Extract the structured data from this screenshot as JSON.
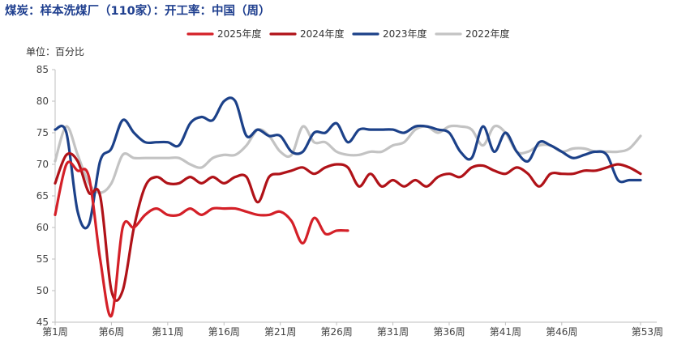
{
  "chart_data": {
    "type": "line",
    "title": "煤炭：样本洗煤厂（110家）：开工率：中国（周）",
    "unit_label": "单位：百分比",
    "ylim": [
      45,
      85
    ],
    "yticks": [
      45,
      50,
      55,
      60,
      65,
      70,
      75,
      80,
      85
    ],
    "xlim": [
      1,
      53
    ],
    "xticks": [
      {
        "x": 1,
        "label": "第1周"
      },
      {
        "x": 6,
        "label": "第6周"
      },
      {
        "x": 11,
        "label": "第11周"
      },
      {
        "x": 16,
        "label": "第16周"
      },
      {
        "x": 21,
        "label": "第21周"
      },
      {
        "x": 26,
        "label": "第26周"
      },
      {
        "x": 31,
        "label": "第31周"
      },
      {
        "x": 36,
        "label": "第36周"
      },
      {
        "x": 41,
        "label": "第41周"
      },
      {
        "x": 46,
        "label": "第46周"
      },
      {
        "x": 53,
        "label": "第53周"
      }
    ],
    "legend_position": "top",
    "series": [
      {
        "name": "2025年度",
        "color": "#d42028",
        "x": [
          1,
          2,
          3,
          4,
          5,
          6,
          7,
          8,
          9,
          10,
          11,
          12,
          13,
          14,
          15,
          16,
          17,
          18,
          19,
          20,
          21,
          22,
          23,
          24,
          25,
          26,
          27
        ],
        "y": [
          62.0,
          70.0,
          69.0,
          68.0,
          55.0,
          46.0,
          60.0,
          60.0,
          62.0,
          63.0,
          62.0,
          62.0,
          63.0,
          62.0,
          63.0,
          63.0,
          63.0,
          62.5,
          62.0,
          62.0,
          62.5,
          61.0,
          57.5,
          61.5,
          59.0,
          59.5,
          59.5
        ]
      },
      {
        "name": "2024年度",
        "color": "#b01218",
        "x": [
          1,
          2,
          3,
          4,
          5,
          6,
          7,
          8,
          9,
          10,
          11,
          12,
          13,
          14,
          15,
          16,
          17,
          18,
          19,
          20,
          21,
          22,
          23,
          24,
          25,
          26,
          27,
          28,
          29,
          30,
          31,
          32,
          33,
          34,
          35,
          36,
          37,
          38,
          39,
          40,
          41,
          42,
          43,
          44,
          45,
          46,
          47,
          48,
          49,
          50,
          51,
          52,
          53
        ],
        "y": [
          67.0,
          71.5,
          70.5,
          65.5,
          65.0,
          50.0,
          50.0,
          60.0,
          66.5,
          68.0,
          67.0,
          67.0,
          68.0,
          67.0,
          68.0,
          67.0,
          68.0,
          68.0,
          64.0,
          68.0,
          68.5,
          69.0,
          69.5,
          68.5,
          69.5,
          70.0,
          69.5,
          66.5,
          68.5,
          66.5,
          67.5,
          66.5,
          67.5,
          66.5,
          68.0,
          68.5,
          68.0,
          69.5,
          69.8,
          69.0,
          68.5,
          69.5,
          68.5,
          66.5,
          68.5,
          68.5,
          68.5,
          69.0,
          69.0,
          69.5,
          70.0,
          69.5,
          68.5
        ]
      },
      {
        "name": "2023年度",
        "color": "#1c4189",
        "x": [
          1,
          2,
          3,
          4,
          5,
          6,
          7,
          8,
          9,
          10,
          11,
          12,
          13,
          14,
          15,
          16,
          17,
          18,
          19,
          20,
          21,
          22,
          23,
          24,
          25,
          26,
          27,
          28,
          29,
          30,
          31,
          32,
          33,
          34,
          35,
          36,
          37,
          38,
          39,
          40,
          41,
          42,
          43,
          44,
          45,
          46,
          47,
          48,
          49,
          50,
          51,
          52,
          53
        ],
        "y": [
          75.5,
          75.0,
          62.5,
          60.5,
          70.5,
          72.5,
          77.0,
          75.0,
          73.5,
          73.5,
          73.5,
          73.0,
          76.5,
          77.5,
          77.0,
          80.0,
          80.0,
          74.5,
          75.5,
          74.5,
          74.5,
          72.0,
          72.0,
          75.0,
          75.0,
          76.5,
          73.5,
          75.5,
          75.5,
          75.5,
          75.5,
          75.0,
          76.0,
          76.0,
          75.5,
          75.0,
          72.0,
          71.0,
          76.0,
          72.0,
          75.0,
          72.0,
          70.5,
          73.5,
          73.0,
          72.0,
          71.0,
          71.5,
          72.0,
          71.5,
          67.5,
          67.5,
          67.5
        ]
      },
      {
        "name": "2022年度",
        "color": "#c3c3c3",
        "x": [
          1,
          2,
          3,
          4,
          5,
          6,
          7,
          8,
          9,
          10,
          11,
          12,
          13,
          14,
          15,
          16,
          17,
          18,
          19,
          20,
          21,
          22,
          23,
          24,
          25,
          26,
          27,
          28,
          29,
          30,
          31,
          32,
          33,
          34,
          35,
          36,
          37,
          38,
          39,
          40,
          41,
          42,
          43,
          44,
          45,
          46,
          47,
          48,
          49,
          50,
          51,
          52,
          53
        ],
        "y": [
          70.5,
          76.0,
          71.5,
          67.0,
          65.5,
          67.0,
          71.5,
          71.0,
          71.0,
          71.0,
          71.0,
          71.0,
          70.0,
          69.5,
          71.0,
          71.5,
          71.5,
          73.0,
          75.5,
          74.5,
          72.0,
          71.5,
          76.0,
          73.5,
          73.5,
          72.0,
          71.5,
          71.5,
          72.0,
          72.0,
          73.0,
          73.5,
          75.5,
          76.0,
          75.0,
          76.0,
          76.0,
          75.5,
          73.0,
          76.0,
          75.0,
          72.0,
          72.0,
          73.0,
          73.0,
          72.0,
          72.5,
          72.5,
          72.0,
          72.0,
          72.0,
          72.5,
          74.5
        ]
      }
    ]
  }
}
